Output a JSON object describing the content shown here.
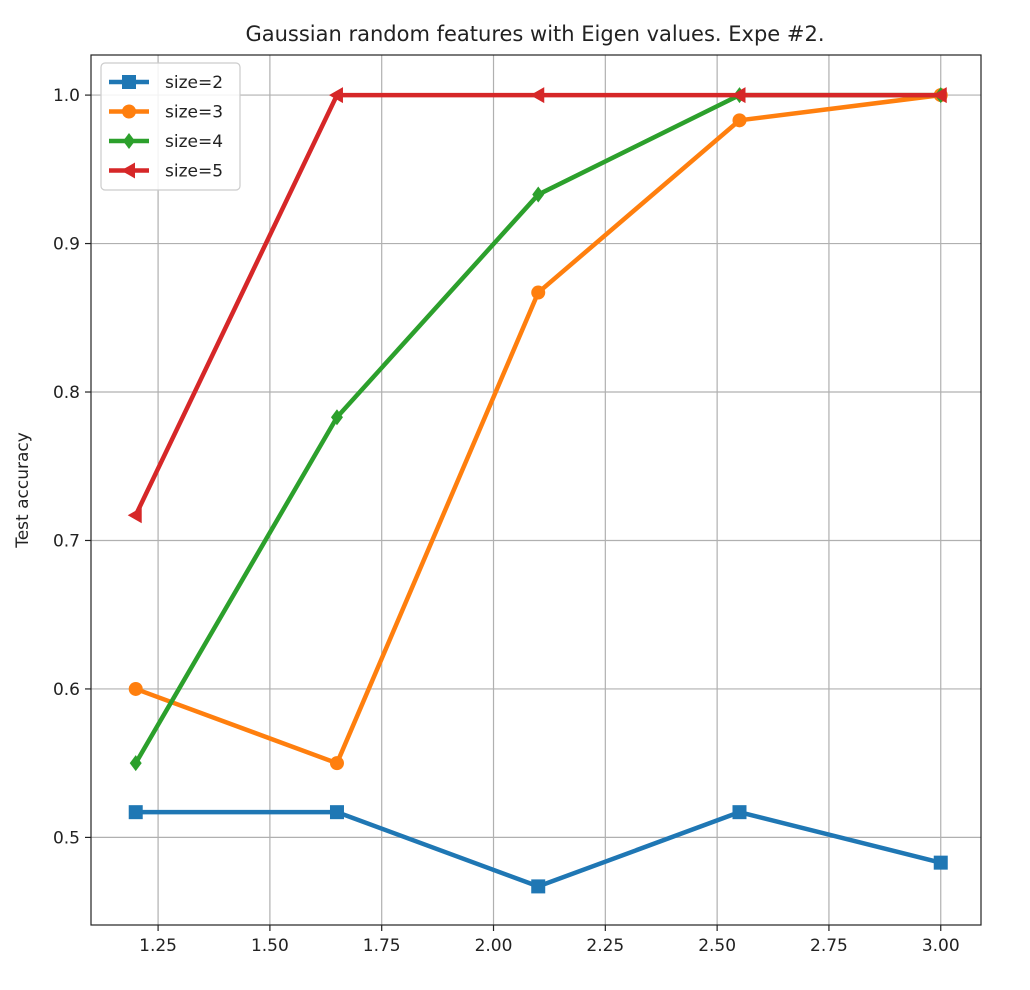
{
  "chart_data": {
    "type": "line",
    "title": "Gaussian random features with Eigen values. Expe #2.",
    "xlabel": "",
    "ylabel": "Test accuracy",
    "x": [
      1.2,
      1.65,
      2.1,
      2.55,
      3.0
    ],
    "xlim": [
      1.1,
      3.09
    ],
    "ylim": [
      0.441,
      1.027
    ],
    "xticks": [
      1.25,
      1.5,
      1.75,
      2.0,
      2.25,
      2.5,
      2.75,
      3.0
    ],
    "xtick_labels": [
      "1.25",
      "1.50",
      "1.75",
      "2.00",
      "2.25",
      "2.50",
      "2.75",
      "3.00"
    ],
    "yticks": [
      0.5,
      0.6,
      0.7,
      0.8,
      0.9,
      1.0
    ],
    "ytick_labels": [
      "0.5",
      "0.6",
      "0.7",
      "0.8",
      "0.9",
      "1.0"
    ],
    "grid": true,
    "legend_position": "top-left",
    "series": [
      {
        "name": "size=2",
        "color": "#1f77b4",
        "marker": "square",
        "values": [
          0.517,
          0.517,
          0.467,
          0.517,
          0.483
        ]
      },
      {
        "name": "size=3",
        "color": "#ff7f0e",
        "marker": "circle",
        "values": [
          0.6,
          0.55,
          0.867,
          0.983,
          1.0
        ]
      },
      {
        "name": "size=4",
        "color": "#2ca02c",
        "marker": "diamond",
        "values": [
          0.55,
          0.783,
          0.933,
          1.0,
          1.0
        ]
      },
      {
        "name": "size=5",
        "color": "#d62728",
        "marker": "triangle-left",
        "values": [
          0.717,
          1.0,
          1.0,
          1.0,
          1.0
        ]
      }
    ]
  }
}
